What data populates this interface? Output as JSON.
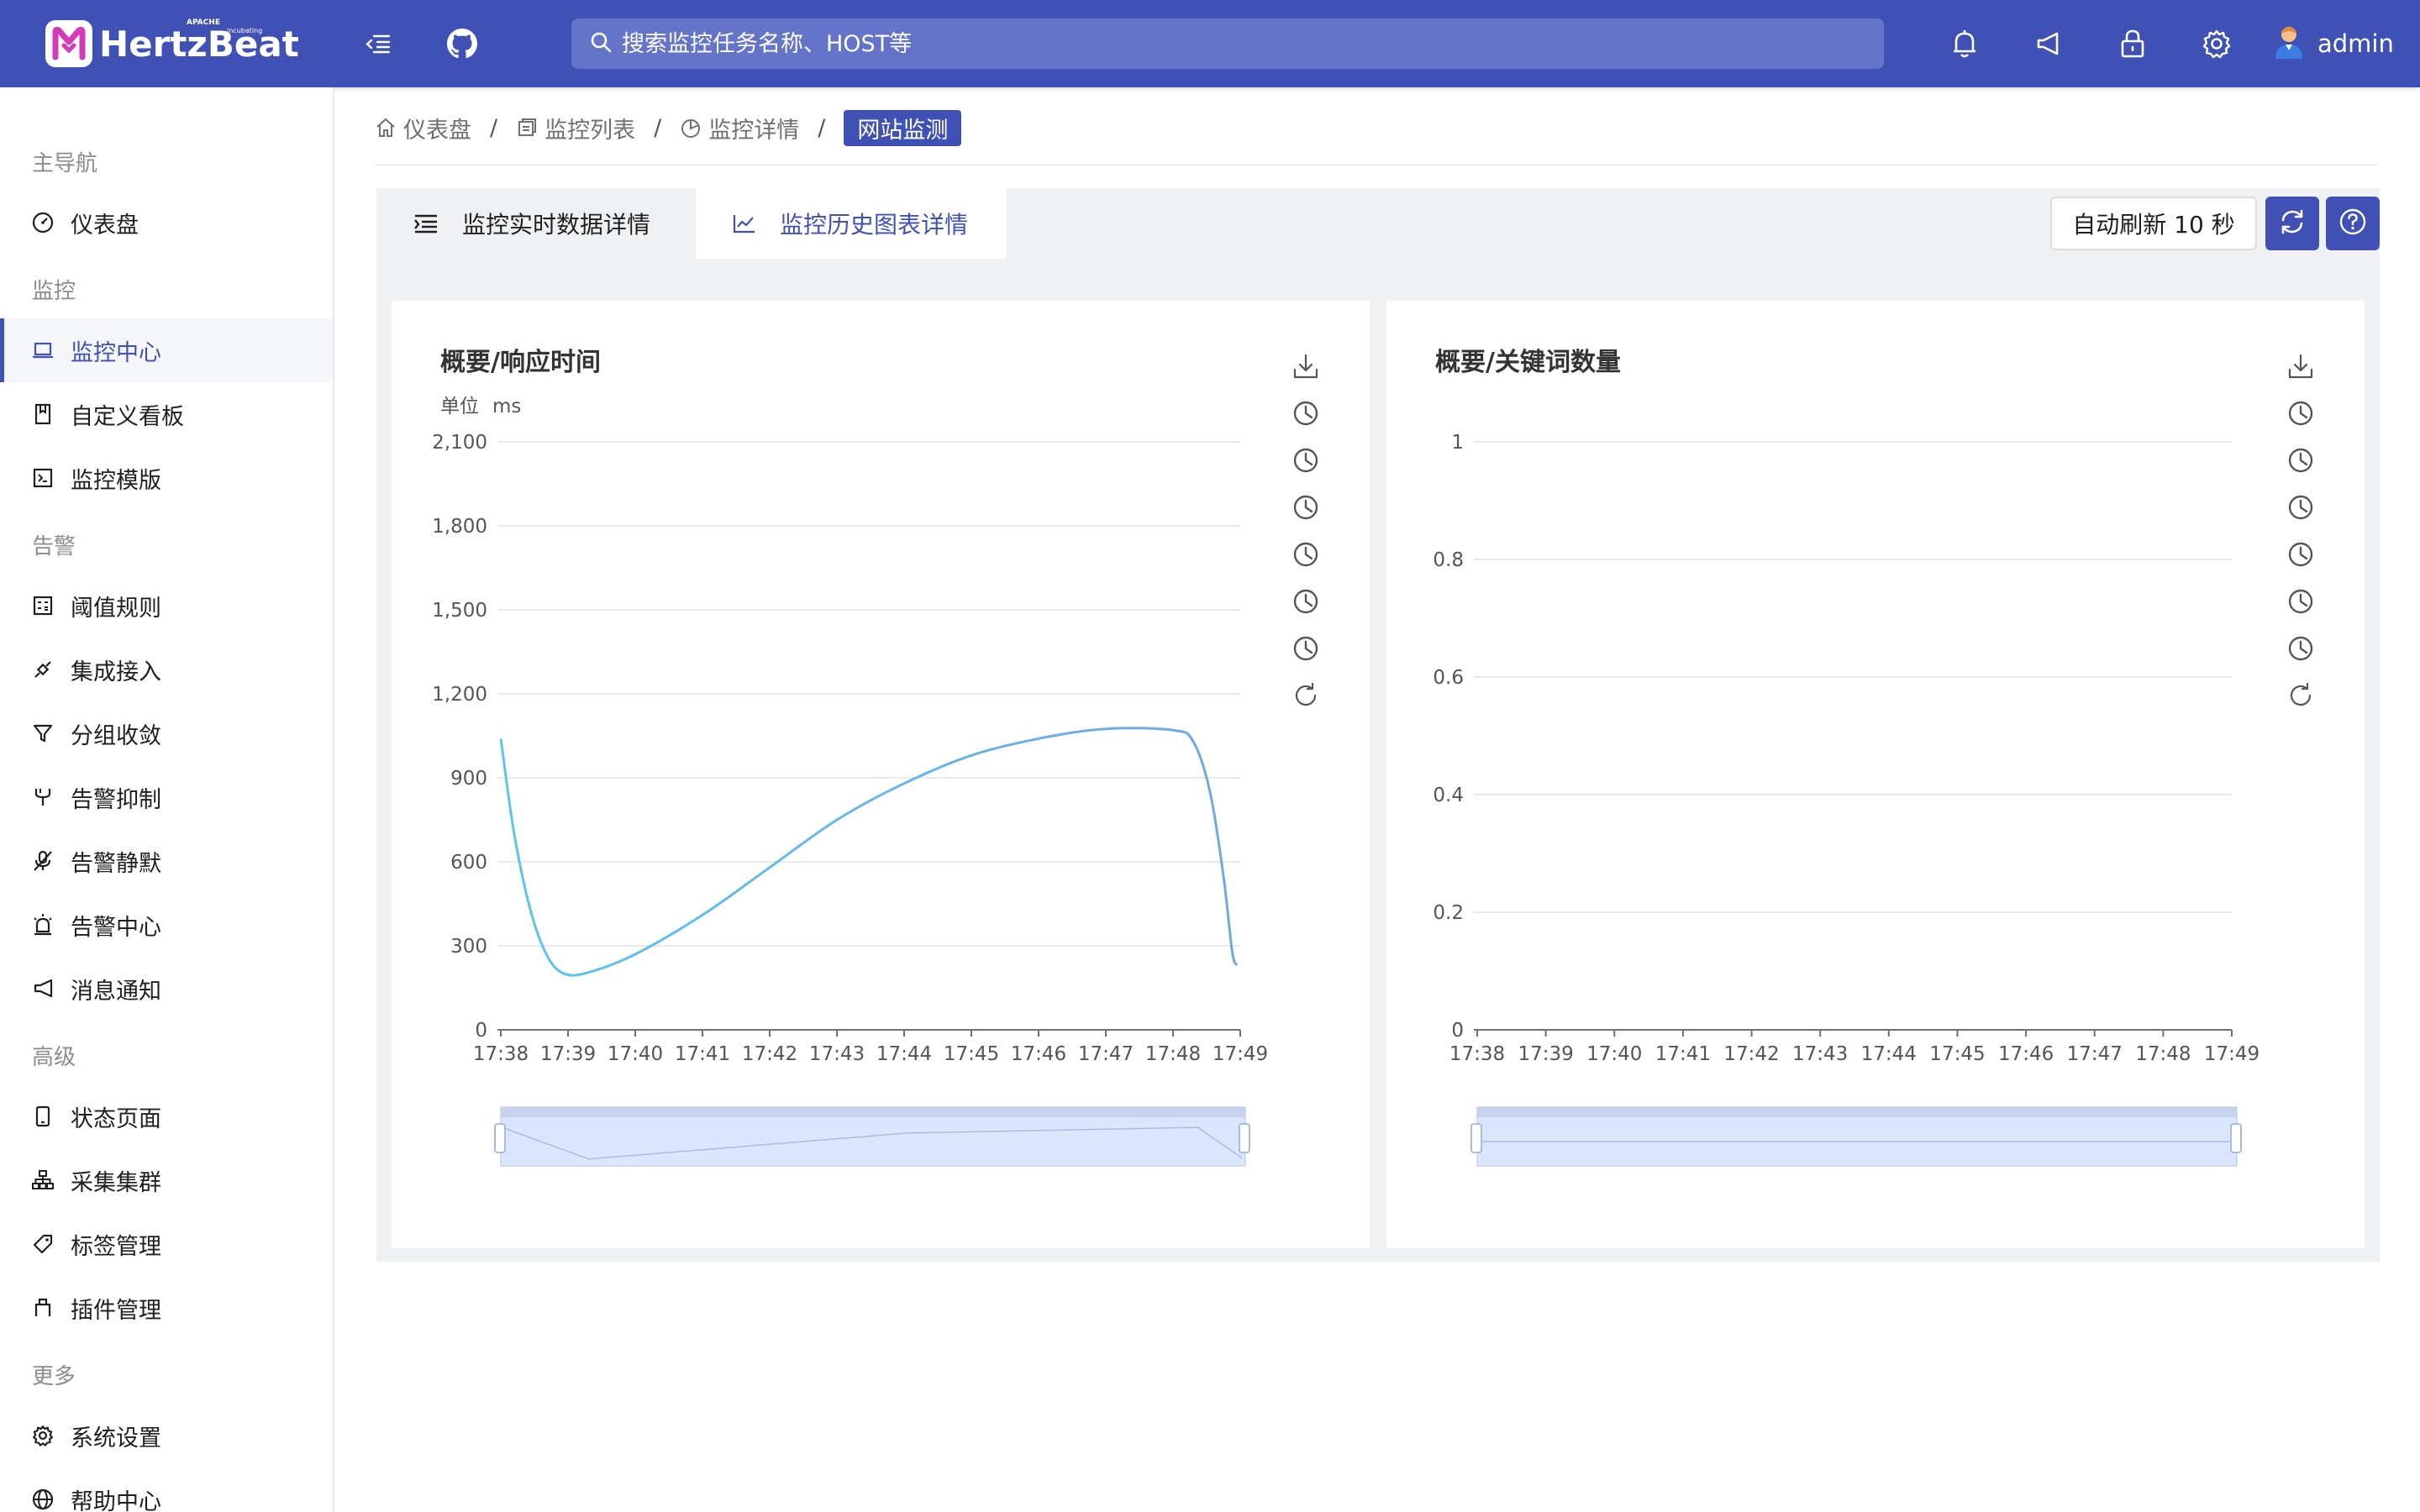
{
  "header": {
    "brand": "HertzBeat",
    "brand_tag_top": "APACHE",
    "brand_tag_bottom": "incubating",
    "search_placeholder": "搜索监控任务名称、HOST等",
    "username": "admin",
    "accent_color": "#3f51b5",
    "icons": [
      "menu-fold-icon",
      "github-icon",
      "bell-icon",
      "sound-icon",
      "lock-icon",
      "gear-icon",
      "avatar-icon"
    ]
  },
  "sidebar": {
    "groups": [
      {
        "label": "主导航",
        "items": [
          {
            "label": "仪表盘",
            "icon": "dashboard-icon"
          }
        ]
      },
      {
        "label": "监控",
        "items": [
          {
            "label": "监控中心",
            "icon": "laptop-icon",
            "active": true
          },
          {
            "label": "自定义看板",
            "icon": "book-icon"
          },
          {
            "label": "监控模版",
            "icon": "code-icon"
          }
        ]
      },
      {
        "label": "告警",
        "items": [
          {
            "label": "阈值规则",
            "icon": "calculator-icon"
          },
          {
            "label": "集成接入",
            "icon": "api-icon"
          },
          {
            "label": "分组收敛",
            "icon": "filter-icon"
          },
          {
            "label": "告警抑制",
            "icon": "fork-icon"
          },
          {
            "label": "告警静默",
            "icon": "audio-muted-icon"
          },
          {
            "label": "告警中心",
            "icon": "alert-icon"
          },
          {
            "label": "消息通知",
            "icon": "notification-icon"
          }
        ]
      },
      {
        "label": "高级",
        "items": [
          {
            "label": "状态页面",
            "icon": "mobile-icon"
          },
          {
            "label": "采集集群",
            "icon": "cluster-icon"
          },
          {
            "label": "标签管理",
            "icon": "tag-icon"
          },
          {
            "label": "插件管理",
            "icon": "plugin-icon"
          }
        ]
      },
      {
        "label": "更多",
        "items": [
          {
            "label": "系统设置",
            "icon": "setting-icon"
          },
          {
            "label": "帮助中心",
            "icon": "global-icon"
          }
        ]
      }
    ]
  },
  "breadcrumb": [
    {
      "label": "仪表盘",
      "icon": "home-icon"
    },
    {
      "label": "监控列表",
      "icon": "appstore-icon"
    },
    {
      "label": "监控详情",
      "icon": "pie-chart-icon"
    },
    {
      "label": "网站监测",
      "current": true
    }
  ],
  "tabs": [
    {
      "label": "监控实时数据详情",
      "icon": "list-icon"
    },
    {
      "label": "监控历史图表详情",
      "icon": "line-chart-icon",
      "active": true
    }
  ],
  "toolbar": {
    "auto_refresh_label": "自动刷新 10 秒",
    "refresh_icon": "sync-icon",
    "help_icon": "question-icon"
  },
  "chart_tools": [
    "download-icon",
    "clock-icon",
    "clock-icon",
    "clock-icon",
    "clock-icon",
    "clock-icon",
    "clock-icon",
    "reload-icon"
  ],
  "chart_data": [
    {
      "type": "line",
      "title": "概要/响应时间",
      "unit_label": "单位",
      "unit": "ms",
      "x": [
        "17:38",
        "17:39",
        "17:40",
        "17:41",
        "17:42",
        "17:43",
        "17:44",
        "17:45",
        "17:46",
        "17:47",
        "17:48",
        "17:49"
      ],
      "ylim": [
        0,
        2100
      ],
      "yticks": [
        0,
        300,
        600,
        900,
        1200,
        1500,
        1800,
        2100
      ],
      "ytick_labels": [
        "0",
        "300",
        "600",
        "900",
        "1,200",
        "1,500",
        "1,800",
        "2,100"
      ],
      "series": [
        {
          "color": "#6fa8e6",
          "points": [
            [
              0.0,
              1040
            ],
            [
              0.2,
              700
            ],
            [
              0.45,
              420
            ],
            [
              0.7,
              260
            ],
            [
              0.95,
              200
            ],
            [
              1.3,
              205
            ],
            [
              2.0,
              270
            ],
            [
              3.0,
              410
            ],
            [
              4.0,
              580
            ],
            [
              5.0,
              750
            ],
            [
              6.0,
              880
            ],
            [
              7.0,
              980
            ],
            [
              8.0,
              1040
            ],
            [
              9.0,
              1075
            ],
            [
              10.0,
              1070
            ],
            [
              10.3,
              1030
            ],
            [
              10.55,
              850
            ],
            [
              10.75,
              550
            ],
            [
              10.88,
              280
            ],
            [
              10.95,
              230
            ]
          ]
        }
      ],
      "grid": true,
      "datazoom": true
    },
    {
      "type": "line",
      "title": "概要/关键词数量",
      "x": [
        "17:38",
        "17:39",
        "17:40",
        "17:41",
        "17:42",
        "17:43",
        "17:44",
        "17:45",
        "17:46",
        "17:47",
        "17:48",
        "17:49"
      ],
      "ylim": [
        0,
        1
      ],
      "yticks": [
        0,
        0.2,
        0.4,
        0.6,
        0.8,
        1
      ],
      "ytick_labels": [
        "0",
        "0.2",
        "0.4",
        "0.6",
        "0.8",
        "1"
      ],
      "series": [
        {
          "color": "#6fa8e6",
          "points": [
            [
              0,
              0
            ],
            [
              1,
              0
            ],
            [
              2,
              0
            ],
            [
              3,
              0
            ],
            [
              4,
              0
            ],
            [
              5,
              0
            ],
            [
              6,
              0
            ],
            [
              7,
              0
            ],
            [
              8,
              0
            ],
            [
              9,
              0
            ],
            [
              10,
              0
            ],
            [
              11,
              0
            ]
          ]
        }
      ],
      "grid": true,
      "datazoom": true
    }
  ]
}
